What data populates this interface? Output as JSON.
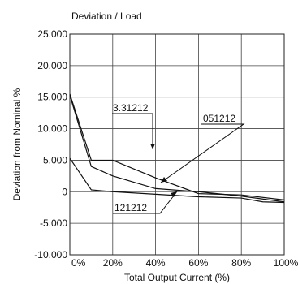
{
  "chart_data": {
    "type": "line",
    "title": "Deviation / Load",
    "xlabel": "Total Output Current (%)",
    "ylabel": "Deviation from Nominal %",
    "xlim": [
      0,
      100
    ],
    "ylim": [
      -10,
      25
    ],
    "x_ticks": [
      "0%",
      "20%",
      "40%",
      "60%",
      "80%",
      "100%"
    ],
    "y_ticks": [
      "25.000",
      "20.000",
      "15.000",
      "10.000",
      "5.000",
      "0",
      "-5.000",
      "-10.000"
    ],
    "grid": true,
    "series": [
      {
        "name": "3.31212",
        "x": [
          0,
          10,
          20,
          40,
          60,
          80,
          100
        ],
        "y": [
          15.5,
          5.0,
          5.0,
          2.2,
          -0.3,
          -0.5,
          -1.3
        ]
      },
      {
        "name": "051212",
        "x": [
          0,
          10,
          20,
          40,
          60,
          80,
          100
        ],
        "y": [
          15.3,
          4.0,
          2.5,
          0.5,
          0.0,
          -0.7,
          -1.6
        ]
      },
      {
        "name": "121212",
        "x": [
          0,
          10,
          20,
          40,
          60,
          80,
          90,
          100
        ],
        "y": [
          5.3,
          0.3,
          0.0,
          -0.4,
          -0.8,
          -1.0,
          -1.6,
          -1.7
        ]
      }
    ],
    "annotations": [
      {
        "text": "3.31212"
      },
      {
        "text": "051212"
      },
      {
        "text": "121212"
      }
    ]
  }
}
